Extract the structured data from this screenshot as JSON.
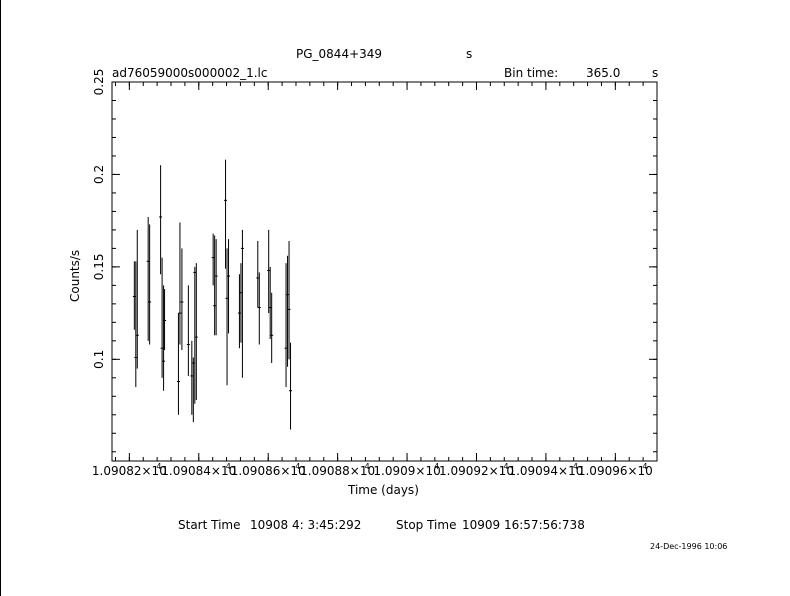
{
  "header": {
    "object": "PG_0844+349",
    "object_unit": "s",
    "file": "ad76059000s000002_1.lc",
    "bin_label": "Bin time:",
    "bin_value": "365.0",
    "bin_unit": "s"
  },
  "footer": {
    "start_label": "Start Time",
    "start_value": "10908  4: 3:45:292",
    "stop_label": "Stop Time",
    "stop_value": "10909 16:57:56:738",
    "date_stamp": "24-Dec-1996 10:06"
  },
  "chart_data": {
    "type": "scatter",
    "xlabel": "Time (days)",
    "ylabel": "Counts/s",
    "xlim": [
      10908.15,
      10909.72
    ],
    "ylim": [
      0.045,
      0.25
    ],
    "x_ticks": [
      {
        "value": 10908.2,
        "mantissa": "1.09082×10",
        "exp": "4"
      },
      {
        "value": 10908.4,
        "mantissa": "1.09084×10",
        "exp": "4"
      },
      {
        "value": 10908.6,
        "mantissa": "1.09086×10",
        "exp": "4"
      },
      {
        "value": 10908.8,
        "mantissa": "1.09088×10",
        "exp": "4"
      },
      {
        "value": 10909.0,
        "mantissa": "1.0909×10",
        "exp": "4"
      },
      {
        "value": 10909.2,
        "mantissa": "1.09092×10",
        "exp": "4"
      },
      {
        "value": 10909.4,
        "mantissa": "1.09094×10",
        "exp": "4"
      },
      {
        "value": 10909.6,
        "mantissa": "1.09096×10",
        "exp": "4"
      }
    ],
    "y_ticks": [
      {
        "value": 0.1,
        "label": "0.1"
      },
      {
        "value": 0.15,
        "label": "0.15"
      },
      {
        "value": 0.2,
        "label": "0.2"
      },
      {
        "value": 0.25,
        "label": "0.25"
      }
    ],
    "points": [
      {
        "x": 10908.2143,
        "y": 0.134,
        "lo": 0.116,
        "hi": 0.153
      },
      {
        "x": 10908.2186,
        "y": 0.101,
        "lo": 0.085,
        "hi": 0.153
      },
      {
        "x": 10908.2228,
        "y": 0.113,
        "lo": 0.095,
        "hi": 0.17
      },
      {
        "x": 10908.2542,
        "y": 0.153,
        "lo": 0.11,
        "hi": 0.177
      },
      {
        "x": 10908.2584,
        "y": 0.131,
        "lo": 0.108,
        "hi": 0.173
      },
      {
        "x": 10908.29,
        "y": 0.177,
        "lo": 0.146,
        "hi": 0.205
      },
      {
        "x": 10908.2943,
        "y": 0.106,
        "lo": 0.09,
        "hi": 0.155
      },
      {
        "x": 10908.2986,
        "y": 0.099,
        "lo": 0.083,
        "hi": 0.14
      },
      {
        "x": 10908.3014,
        "y": 0.121,
        "lo": 0.105,
        "hi": 0.138
      },
      {
        "x": 10908.3414,
        "y": 0.088,
        "lo": 0.07,
        "hi": 0.125
      },
      {
        "x": 10908.3457,
        "y": 0.125,
        "lo": 0.108,
        "hi": 0.174
      },
      {
        "x": 10908.3514,
        "y": 0.131,
        "lo": 0.105,
        "hi": 0.16
      },
      {
        "x": 10908.37,
        "y": 0.108,
        "lo": 0.091,
        "hi": 0.14
      },
      {
        "x": 10908.38,
        "y": 0.091,
        "lo": 0.07,
        "hi": 0.11
      },
      {
        "x": 10908.3843,
        "y": 0.098,
        "lo": 0.066,
        "hi": 0.101
      },
      {
        "x": 10908.3886,
        "y": 0.147,
        "lo": 0.076,
        "hi": 0.15
      },
      {
        "x": 10908.3929,
        "y": 0.112,
        "lo": 0.078,
        "hi": 0.152
      },
      {
        "x": 10908.4414,
        "y": 0.155,
        "lo": 0.14,
        "hi": 0.168
      },
      {
        "x": 10908.4457,
        "y": 0.129,
        "lo": 0.113,
        "hi": 0.167
      },
      {
        "x": 10908.45,
        "y": 0.145,
        "lo": 0.113,
        "hi": 0.165
      },
      {
        "x": 10908.4771,
        "y": 0.186,
        "lo": 0.149,
        "hi": 0.208
      },
      {
        "x": 10908.4814,
        "y": 0.133,
        "lo": 0.086,
        "hi": 0.16
      },
      {
        "x": 10908.4857,
        "y": 0.145,
        "lo": 0.114,
        "hi": 0.165
      },
      {
        "x": 10908.5171,
        "y": 0.125,
        "lo": 0.106,
        "hi": 0.146
      },
      {
        "x": 10908.5214,
        "y": 0.136,
        "lo": 0.109,
        "hi": 0.152
      },
      {
        "x": 10908.5257,
        "y": 0.16,
        "lo": 0.09,
        "hi": 0.17
      },
      {
        "x": 10908.57,
        "y": 0.144,
        "lo": 0.128,
        "hi": 0.164
      },
      {
        "x": 10908.5743,
        "y": 0.128,
        "lo": 0.108,
        "hi": 0.147
      },
      {
        "x": 10908.6014,
        "y": 0.148,
        "lo": 0.125,
        "hi": 0.17
      },
      {
        "x": 10908.6057,
        "y": 0.128,
        "lo": 0.111,
        "hi": 0.15
      },
      {
        "x": 10908.61,
        "y": 0.113,
        "lo": 0.098,
        "hi": 0.136
      },
      {
        "x": 10908.6514,
        "y": 0.106,
        "lo": 0.085,
        "hi": 0.152
      },
      {
        "x": 10908.6557,
        "y": 0.135,
        "lo": 0.096,
        "hi": 0.156
      },
      {
        "x": 10908.66,
        "y": 0.127,
        "lo": 0.1,
        "hi": 0.164
      },
      {
        "x": 10908.6643,
        "y": 0.083,
        "lo": 0.062,
        "hi": 0.109
      }
    ]
  }
}
